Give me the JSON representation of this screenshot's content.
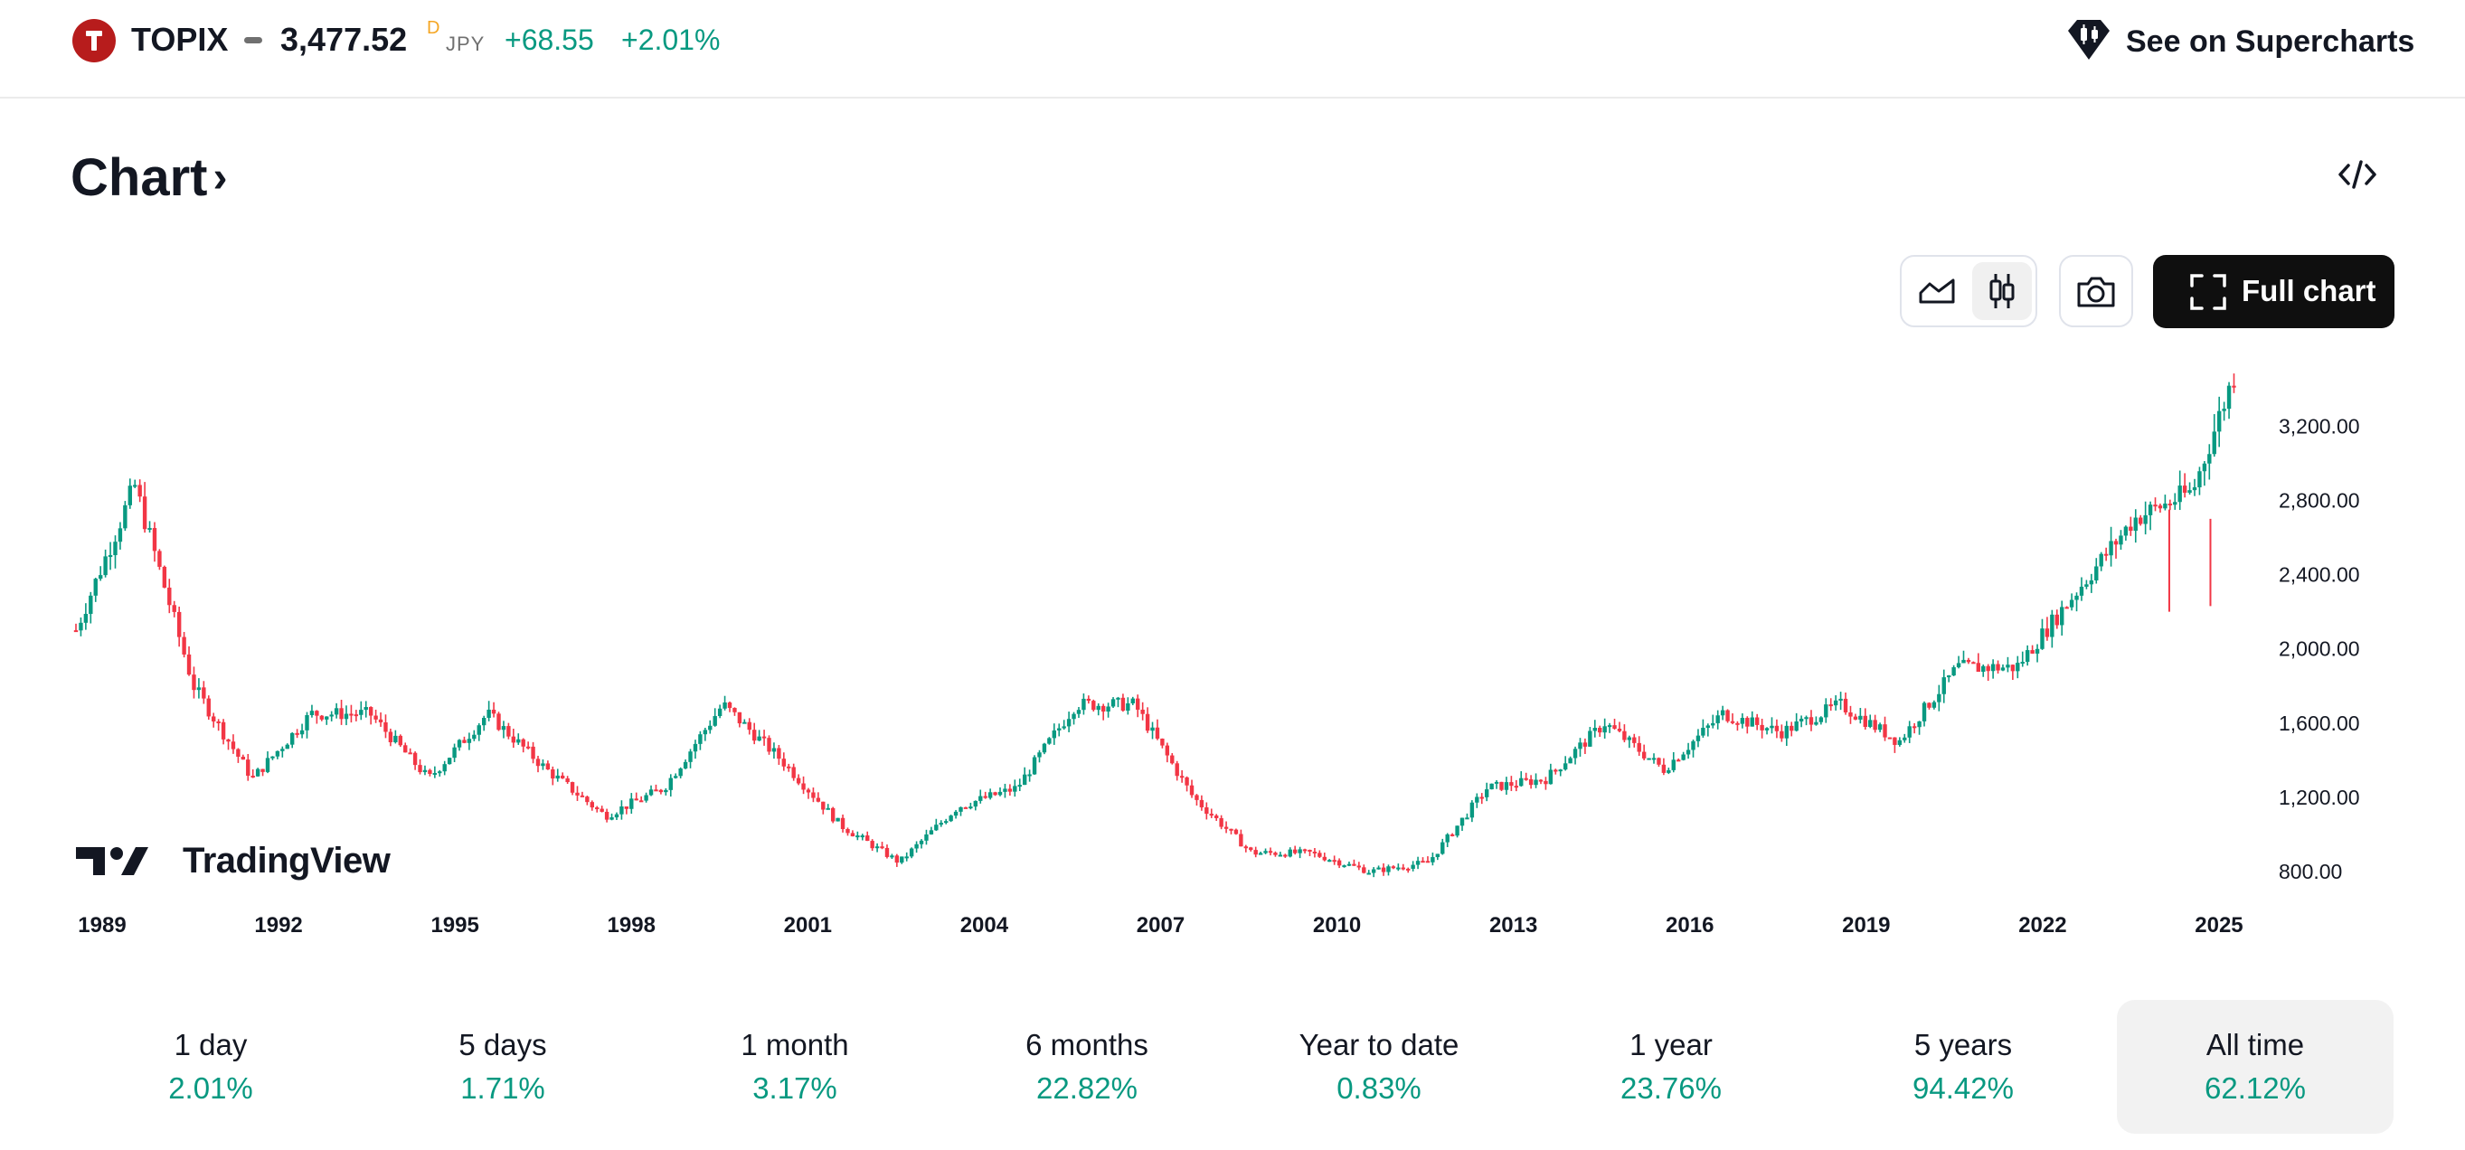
{
  "header": {
    "symbol": "TOPIX",
    "price": "3,477.52",
    "interval_mark": "D",
    "currency": "JPY",
    "change": "+68.55",
    "change_pct": "+2.01%",
    "supercharts_label": "See on Supercharts",
    "logo_letter": "T"
  },
  "chart_section": {
    "title": "Chart",
    "full_chart_label": "Full chart",
    "watermark": "TradingView"
  },
  "colors": {
    "up": "#089981",
    "down": "#F23645",
    "brand": "#B71C1C",
    "accent": "#F5A623"
  },
  "periods": [
    {
      "label": "1 day",
      "value": "2.01%"
    },
    {
      "label": "5 days",
      "value": "1.71%"
    },
    {
      "label": "1 month",
      "value": "3.17%"
    },
    {
      "label": "6 months",
      "value": "22.82%"
    },
    {
      "label": "Year to date",
      "value": "0.83%"
    },
    {
      "label": "1 year",
      "value": "23.76%"
    },
    {
      "label": "5 years",
      "value": "94.42%"
    },
    {
      "label": "All time",
      "value": "62.12%"
    }
  ],
  "chart_data": {
    "type": "candlestick",
    "title": "TOPIX",
    "x": [
      1989,
      1990,
      1991,
      1992,
      1993,
      1994,
      1995,
      1996,
      1997,
      1998,
      1999,
      2000,
      2001,
      2002,
      2003,
      2004,
      2005,
      2006,
      2007,
      2008,
      2009,
      2010,
      2011,
      2012,
      2013,
      2014,
      2015,
      2016,
      2017,
      2018,
      2019,
      2020,
      2021,
      2022,
      2023,
      2024,
      2025,
      2025.7
    ],
    "values": [
      2100,
      2880,
      1800,
      1300,
      1650,
      1650,
      1300,
      1650,
      1350,
      1100,
      1250,
      1700,
      1400,
      1050,
      850,
      1150,
      1250,
      1700,
      1700,
      1200,
      900,
      900,
      800,
      850,
      1250,
      1300,
      1600,
      1350,
      1650,
      1550,
      1700,
      1500,
      1900,
      1900,
      2300,
      2700,
      2850,
      3477
    ],
    "x_ticks": [
      "1989",
      "1992",
      "1995",
      "1998",
      "2001",
      "2004",
      "2007",
      "2010",
      "2013",
      "2016",
      "2019",
      "2022",
      "2025"
    ],
    "y_ticks": [
      "800.00",
      "1,200.00",
      "1,600.00",
      "2,000.00",
      "2,400.00",
      "2,800.00",
      "3,200.00"
    ],
    "ylim": [
      500,
      3500
    ],
    "xlim": [
      1989,
      2026
    ],
    "grid": false,
    "legend": "none"
  }
}
